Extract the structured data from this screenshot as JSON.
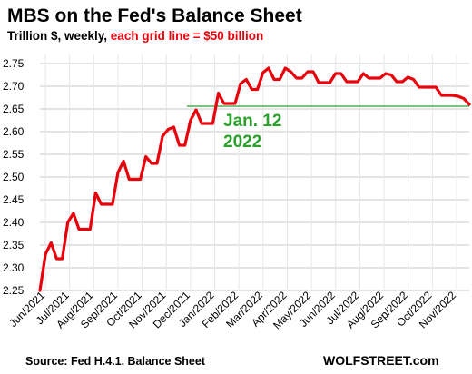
{
  "chart_data": {
    "type": "line",
    "title": "MBS on the Fed's Balance Sheet",
    "subtitle_black": "Trillion $, weekly, ",
    "subtitle_red": "each grid line = $50 billion",
    "ylim": [
      2.25,
      2.77
    ],
    "yticks": [
      "2.75",
      "2.70",
      "2.65",
      "2.60",
      "2.55",
      "2.50",
      "2.45",
      "2.40",
      "2.35",
      "2.30",
      "2.25"
    ],
    "ytick_values": [
      2.75,
      2.7,
      2.65,
      2.6,
      2.55,
      2.5,
      2.45,
      2.4,
      2.35,
      2.3,
      2.25
    ],
    "xticks": [
      "Jun/2021",
      "Jul/2021",
      "Aug/2021",
      "Sep/2021",
      "Oct/2021",
      "Nov/2021",
      "Dec/2021",
      "Jan/2022",
      "Feb/2022",
      "Mar/2022",
      "Apr/2022",
      "May/2022",
      "Jun/2022",
      "Jul/2022",
      "Aug/2022",
      "Sep/2022",
      "Oct/2022",
      "Nov/2022"
    ],
    "grid": true,
    "series": [
      {
        "color": "#e8000b",
        "values": [
          2.25,
          2.33,
          2.355,
          2.32,
          2.32,
          2.4,
          2.42,
          2.385,
          2.385,
          2.385,
          2.465,
          2.44,
          2.44,
          2.44,
          2.51,
          2.535,
          2.495,
          2.495,
          2.495,
          2.545,
          2.53,
          2.53,
          2.59,
          2.605,
          2.61,
          2.57,
          2.57,
          2.625,
          2.648,
          2.618,
          2.618,
          2.618,
          2.685,
          2.662,
          2.662,
          2.662,
          2.706,
          2.715,
          2.693,
          2.693,
          2.73,
          2.74,
          2.715,
          2.715,
          2.74,
          2.732,
          2.718,
          2.718,
          2.732,
          2.732,
          2.708,
          2.708,
          2.708,
          2.728,
          2.728,
          2.71,
          2.71,
          2.71,
          2.728,
          2.718,
          2.718,
          2.718,
          2.728,
          2.725,
          2.71,
          2.71,
          2.72,
          2.715,
          2.698,
          2.698,
          2.698,
          2.698,
          2.68,
          2.68,
          2.68,
          2.678,
          2.673,
          2.66
        ]
      }
    ],
    "reference_line": {
      "value": 2.656,
      "color": "#2ca02c",
      "start_index": 27,
      "label_line1": "Jan. 12",
      "label_line2": "2022"
    }
  },
  "footer": {
    "source": "Source: Fed H.4.1. Balance Sheet",
    "brand": "WOLFSTREET.com"
  }
}
